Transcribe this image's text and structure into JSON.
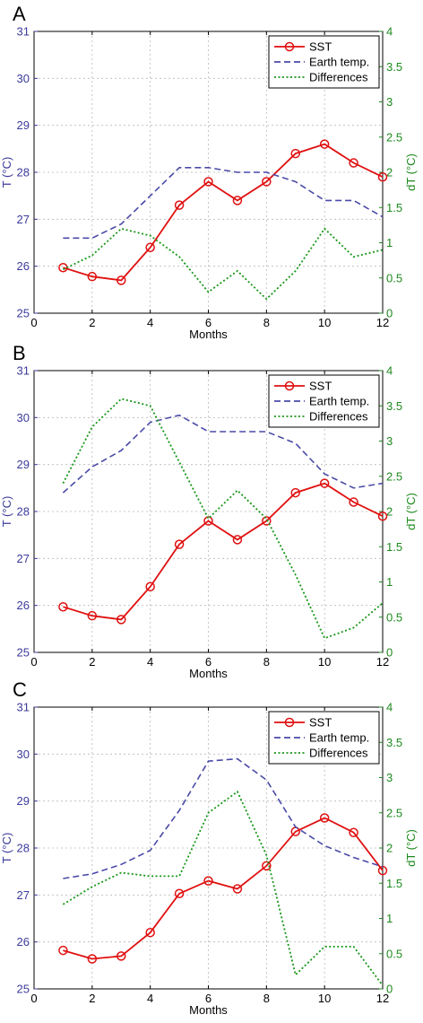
{
  "colors": {
    "sst": "#e01010",
    "earth": "#4a4aa8",
    "diff": "#179617",
    "left_axis": "#3b3b9b",
    "right_axis": "#1e8a1e"
  },
  "chart_data": [
    {
      "panel": "A",
      "type": "line",
      "x": [
        1,
        2,
        3,
        4,
        5,
        6,
        7,
        8,
        9,
        10,
        11,
        12
      ],
      "xlabel": "Months",
      "ylabel": "T (°C)",
      "y2label": "dT (°C)",
      "xlim": [
        0,
        12
      ],
      "ylim": [
        25,
        31
      ],
      "y2lim": [
        0,
        4
      ],
      "xticks": [
        "0",
        "2",
        "4",
        "6",
        "8",
        "10",
        "12"
      ],
      "yticks": [
        "25",
        "26",
        "27",
        "28",
        "29",
        "30",
        "31"
      ],
      "y2ticks": [
        "0",
        "0.5",
        "1",
        "1.5",
        "2",
        "2.5",
        "3",
        "3.5",
        "4"
      ],
      "grid": true,
      "legend": "top-right",
      "series": [
        {
          "name": "SST",
          "axis": "left",
          "style": "solid-marker",
          "values": [
            25.97,
            25.78,
            25.7,
            26.4,
            27.3,
            27.8,
            27.4,
            27.8,
            28.4,
            28.6,
            28.2,
            27.9
          ]
        },
        {
          "name": "Earth temp.",
          "axis": "left",
          "style": "dashed",
          "values": [
            26.6,
            26.6,
            26.9,
            27.5,
            28.1,
            28.1,
            28.0,
            28.0,
            27.8,
            27.4,
            27.4,
            27.05
          ]
        },
        {
          "name": "Differences",
          "axis": "right",
          "style": "dotted",
          "values": [
            0.62,
            0.82,
            1.2,
            1.1,
            0.8,
            0.3,
            0.6,
            0.2,
            0.6,
            1.2,
            0.8,
            0.9
          ]
        }
      ]
    },
    {
      "panel": "B",
      "type": "line",
      "x": [
        1,
        2,
        3,
        4,
        5,
        6,
        7,
        8,
        9,
        10,
        11,
        12
      ],
      "xlabel": "Months",
      "ylabel": "T (°C)",
      "y2label": "dT (°C)",
      "xlim": [
        0,
        12
      ],
      "ylim": [
        25,
        31
      ],
      "y2lim": [
        0,
        4
      ],
      "xticks": [
        "0",
        "2",
        "4",
        "6",
        "8",
        "10",
        "12"
      ],
      "yticks": [
        "25",
        "26",
        "27",
        "28",
        "29",
        "30",
        "31"
      ],
      "y2ticks": [
        "0",
        "0.5",
        "1",
        "1.5",
        "2",
        "2.5",
        "3",
        "3.5",
        "4"
      ],
      "grid": true,
      "legend": "top-right",
      "series": [
        {
          "name": "SST",
          "axis": "left",
          "style": "solid-marker",
          "values": [
            25.97,
            25.78,
            25.7,
            26.4,
            27.3,
            27.8,
            27.4,
            27.8,
            28.4,
            28.6,
            28.2,
            27.9
          ]
        },
        {
          "name": "Earth temp.",
          "axis": "left",
          "style": "dashed",
          "values": [
            28.4,
            28.95,
            29.3,
            29.9,
            30.05,
            29.7,
            29.7,
            29.7,
            29.45,
            28.8,
            28.5,
            28.6
          ]
        },
        {
          "name": "Differences",
          "axis": "right",
          "style": "dotted",
          "values": [
            2.4,
            3.2,
            3.6,
            3.5,
            2.7,
            1.9,
            2.3,
            1.9,
            1.1,
            0.2,
            0.35,
            0.7
          ]
        }
      ]
    },
    {
      "panel": "C",
      "type": "line",
      "x": [
        1,
        2,
        3,
        4,
        5,
        6,
        7,
        8,
        9,
        10,
        11,
        12
      ],
      "xlabel": "Months",
      "ylabel": "T (°C)",
      "y2label": "dT (°C)",
      "xlim": [
        0,
        12
      ],
      "ylim": [
        25,
        31
      ],
      "y2lim": [
        0,
        4
      ],
      "xticks": [
        "0",
        "2",
        "4",
        "6",
        "8",
        "10",
        "12"
      ],
      "yticks": [
        "25",
        "26",
        "27",
        "28",
        "29",
        "30",
        "31"
      ],
      "y2ticks": [
        "0",
        "0.5",
        "1",
        "1.5",
        "2",
        "2.5",
        "3",
        "3.5",
        "4"
      ],
      "grid": true,
      "legend": "top-right",
      "series": [
        {
          "name": "SST",
          "axis": "left",
          "style": "solid-marker",
          "values": [
            25.82,
            25.64,
            25.7,
            26.2,
            27.03,
            27.3,
            27.13,
            27.62,
            28.35,
            28.64,
            28.33,
            27.52
          ]
        },
        {
          "name": "Earth temp.",
          "axis": "left",
          "style": "dashed",
          "values": [
            27.35,
            27.45,
            27.65,
            27.95,
            28.8,
            29.85,
            29.9,
            29.45,
            28.45,
            28.05,
            27.8,
            27.6
          ]
        },
        {
          "name": "Differences",
          "axis": "right",
          "style": "dotted",
          "values": [
            1.2,
            1.45,
            1.65,
            1.6,
            1.6,
            2.5,
            2.8,
            1.9,
            0.2,
            0.6,
            0.6,
            0.05
          ]
        }
      ]
    }
  ]
}
